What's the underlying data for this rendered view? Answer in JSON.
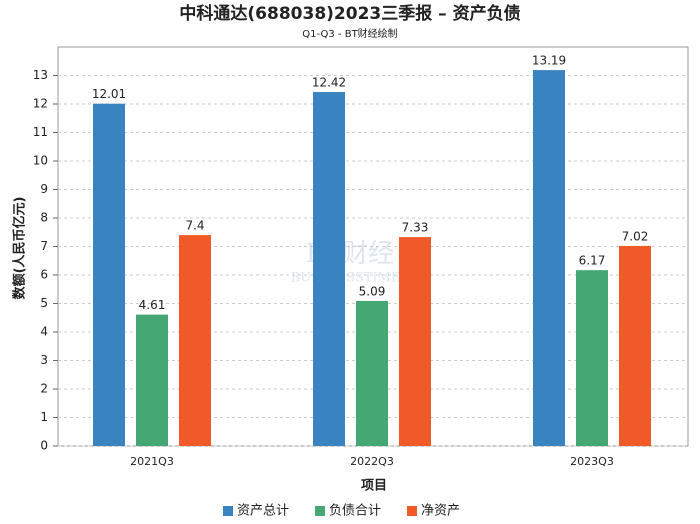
{
  "chart_data": {
    "type": "bar",
    "title": "中科通达(688038)2023三季报 – 资产负债",
    "subtitle": "Q1-Q3 - BT财经绘制",
    "watermark": [
      "BT财经",
      "BUSINESSTIMES"
    ],
    "x_label": "项目",
    "y_label": "数额(人民币亿元)",
    "categories": [
      "2021Q3",
      "2022Q3",
      "2023Q3"
    ],
    "series": [
      {
        "name": "资产总计",
        "color": "#3a83c1",
        "values": [
          12.01,
          12.42,
          13.19
        ]
      },
      {
        "name": "负债合计",
        "color": "#45a874",
        "values": [
          4.61,
          5.09,
          6.17
        ]
      },
      {
        "name": "净资产",
        "color": "#f05a28",
        "values": [
          7.4,
          7.33,
          7.02
        ]
      }
    ],
    "ylim": [
      0,
      14
    ],
    "yticks": [
      0,
      1,
      2,
      3,
      4,
      5,
      6,
      7,
      8,
      9,
      10,
      11,
      12,
      13
    ],
    "grid": true,
    "legend": "bottom"
  }
}
